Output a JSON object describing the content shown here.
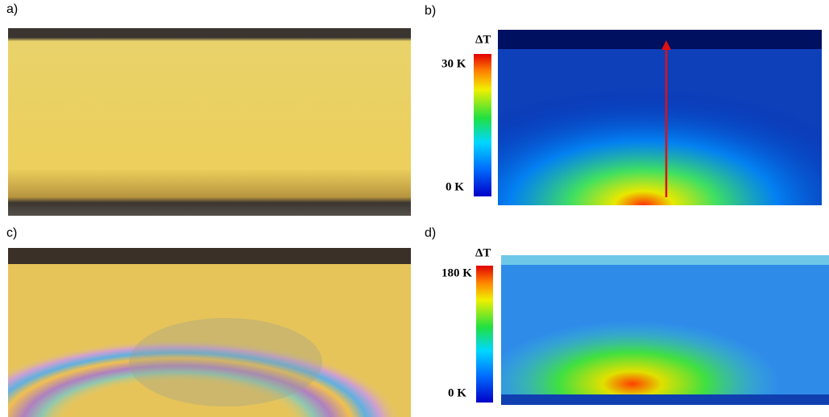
{
  "panels": [
    {
      "label": "a)"
    },
    {
      "label": "b)",
      "colorbar": {
        "title": "ΔT",
        "max_label": "30 K",
        "min_label": "0 K"
      }
    },
    {
      "label": "c)"
    },
    {
      "label": "d)",
      "colorbar": {
        "title": "ΔT",
        "max_label": "180 K",
        "min_label": "0 K"
      }
    }
  ]
}
